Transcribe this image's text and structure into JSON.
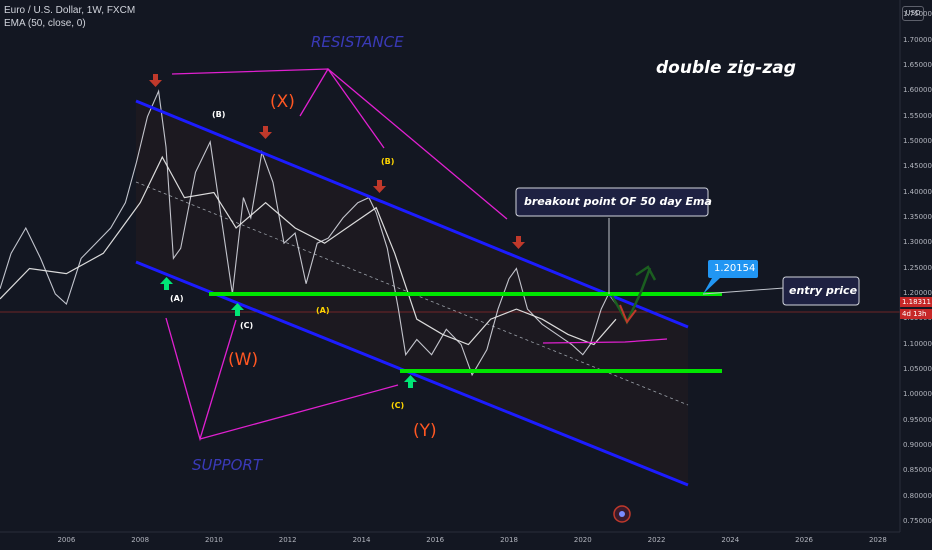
{
  "header": {
    "symbol_line": "Euro / U.S. Dollar, 1W, FXCM",
    "indicator_line": "EMA (50, close, 0)",
    "currency_button": "USD"
  },
  "annotations": {
    "title": "double zig-zag",
    "resistance": "RESISTANCE",
    "support": "SUPPORT",
    "breakout": "breakout point OF 50 day Ema",
    "entry_price_label": "entry price",
    "entry_price_value": "1.20154"
  },
  "waves": [
    {
      "label": "(X)",
      "color": "#ff5722",
      "size": "big"
    },
    {
      "label": "(W)",
      "color": "#ff5722",
      "size": "big"
    },
    {
      "label": "(Y)",
      "color": "#ff5722",
      "size": "big"
    },
    {
      "label": "(B)",
      "color": "#ffffff",
      "size": "small"
    },
    {
      "label": "(A)",
      "color": "#ffffff",
      "size": "small"
    },
    {
      "label": "(C)",
      "color": "#ffffff",
      "size": "small"
    },
    {
      "label": "(B)",
      "color": "#ffd600",
      "size": "small"
    },
    {
      "label": "(A)",
      "color": "#ffd600",
      "size": "small"
    },
    {
      "label": "(C)",
      "color": "#ffd600",
      "size": "small"
    }
  ],
  "price_tags": {
    "current": "1.18311",
    "countdown": "4d 13h"
  },
  "colors": {
    "background": "#131722",
    "channel": "#1c1cff",
    "horizontal_level": "#00e600",
    "pink_lines": "#e020d0",
    "price_line": "#e0e3eb",
    "ema": "#e6e6e6",
    "arrow_down": "#c0392b",
    "arrow_up": "#00e676",
    "entry_tag": "#2196f3"
  },
  "chart_data": {
    "type": "line",
    "title": "Euro / U.S. Dollar, 1W, FXCM",
    "x_ticks": [
      "2006",
      "2008",
      "2010",
      "2012",
      "2014",
      "2016",
      "2018",
      "2020",
      "2022",
      "2024",
      "2026",
      "2028"
    ],
    "y_ticks": [
      "1.75000",
      "1.70000",
      "1.65000",
      "1.60000",
      "1.55000",
      "1.50000",
      "1.45000",
      "1.40000",
      "1.35000",
      "1.30000",
      "1.25000",
      "1.20000",
      "1.15000",
      "1.10000",
      "1.05000",
      "1.00000",
      "0.95000",
      "0.90000",
      "0.85000",
      "0.80000",
      "0.75000"
    ],
    "ylim": [
      0.73,
      1.78
    ],
    "xlim": [
      2004.2,
      2028.6
    ],
    "grid": false,
    "series": [
      {
        "name": "Euro / U.S. Dollar",
        "x": [
          2004.2,
          2004.5,
          2004.9,
          2005.3,
          2005.7,
          2006.0,
          2006.4,
          2006.8,
          2007.2,
          2007.6,
          2007.9,
          2008.2,
          2008.5,
          2008.7,
          2008.9,
          2009.1,
          2009.5,
          2009.9,
          2010.2,
          2010.5,
          2010.8,
          2011.0,
          2011.3,
          2011.6,
          2011.9,
          2012.2,
          2012.5,
          2012.8,
          2013.1,
          2013.5,
          2013.9,
          2014.2,
          2014.4,
          2014.7,
          2015.0,
          2015.2,
          2015.5,
          2015.9,
          2016.3,
          2016.7,
          2017.0,
          2017.4,
          2017.7,
          2018.0,
          2018.2,
          2018.5,
          2018.9,
          2019.3,
          2019.7,
          2020.0,
          2020.2,
          2020.5,
          2020.7,
          2020.9
        ],
        "values": [
          1.21,
          1.28,
          1.33,
          1.27,
          1.2,
          1.18,
          1.27,
          1.3,
          1.33,
          1.38,
          1.46,
          1.55,
          1.6,
          1.49,
          1.27,
          1.29,
          1.44,
          1.5,
          1.35,
          1.2,
          1.39,
          1.35,
          1.48,
          1.42,
          1.3,
          1.32,
          1.22,
          1.3,
          1.31,
          1.35,
          1.38,
          1.39,
          1.36,
          1.29,
          1.17,
          1.08,
          1.11,
          1.08,
          1.13,
          1.1,
          1.04,
          1.09,
          1.17,
          1.23,
          1.25,
          1.17,
          1.14,
          1.12,
          1.1,
          1.08,
          1.1,
          1.17,
          1.2,
          1.18
        ]
      },
      {
        "name": "EMA (50, close, 0)",
        "x": [
          2004.2,
          2005.0,
          2006.0,
          2007.0,
          2008.0,
          2008.6,
          2009.2,
          2010.0,
          2010.6,
          2011.4,
          2012.2,
          2013.0,
          2013.8,
          2014.4,
          2014.9,
          2015.5,
          2016.2,
          2016.9,
          2017.5,
          2018.2,
          2018.9,
          2019.6,
          2020.3,
          2020.9
        ],
        "values": [
          1.19,
          1.25,
          1.24,
          1.28,
          1.38,
          1.47,
          1.39,
          1.4,
          1.33,
          1.38,
          1.33,
          1.3,
          1.34,
          1.37,
          1.28,
          1.15,
          1.12,
          1.1,
          1.15,
          1.17,
          1.15,
          1.12,
          1.1,
          1.15
        ]
      }
    ]
  }
}
